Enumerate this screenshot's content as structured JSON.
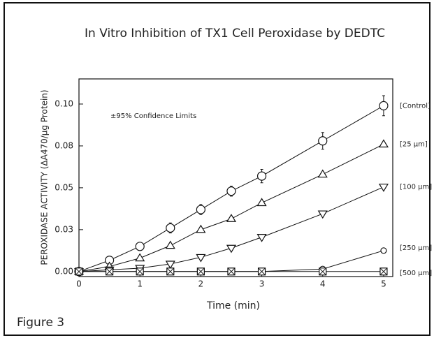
{
  "chart_data": {
    "type": "line",
    "title": "In Vitro Inhibition of TX1 Cell Peroxidase by DEDTC",
    "x_label": "Time (min)",
    "y_label": "PEROXIDASE ACTIVITY (ΔA470/μg Protein)",
    "annotation": "±95% Confidence Limits",
    "caption": "Figure 3",
    "x": [
      0,
      0.5,
      1,
      1.5,
      2,
      2.5,
      3,
      4,
      5
    ],
    "series": [
      {
        "name": "[Control]",
        "color": "#111111",
        "marker": "circle",
        "values": [
          0,
          0.0067,
          0.015,
          0.026,
          0.037,
          0.048,
          0.057,
          0.078,
          0.099
        ],
        "errors": [
          null,
          null,
          null,
          0.003,
          0.003,
          0.003,
          0.004,
          0.005,
          0.006
        ]
      },
      {
        "name": "[25 μm]",
        "color": "#111111",
        "marker": "triangle",
        "values": [
          0,
          0.003,
          0.008,
          0.0155,
          0.025,
          0.0315,
          0.041,
          0.058,
          0.076
        ]
      },
      {
        "name": "[100 μm]",
        "color": "#111111",
        "marker": "triangle-down",
        "values": [
          0,
          0.001,
          0.002,
          0.0045,
          0.0085,
          0.014,
          0.0205,
          0.0345,
          0.0505
        ]
      },
      {
        "name": "[250 μm]",
        "color": "#111111",
        "marker": "small-circle",
        "values": [
          0,
          0,
          0,
          0,
          0,
          0,
          0,
          0.0015,
          0.0125
        ]
      },
      {
        "name": "[500 μm]",
        "color": "#111111",
        "marker": "square-x",
        "values": [
          0,
          0,
          0,
          0,
          0,
          0,
          0,
          0,
          0
        ]
      }
    ],
    "xlim": [
      0,
      5.15
    ],
    "xticks": [
      0,
      1,
      2,
      3,
      4,
      5
    ],
    "ylim": [
      -0.003,
      0.115
    ],
    "yticks": [
      {
        "value": 0,
        "label": "0.00"
      },
      {
        "value": 0.025,
        "label": "0.03"
      },
      0.05,
      {
        "value": 0.075,
        "label": "0.08"
      },
      {
        "value": 0.1,
        "label": "0.10"
      }
    ],
    "grid": false
  }
}
